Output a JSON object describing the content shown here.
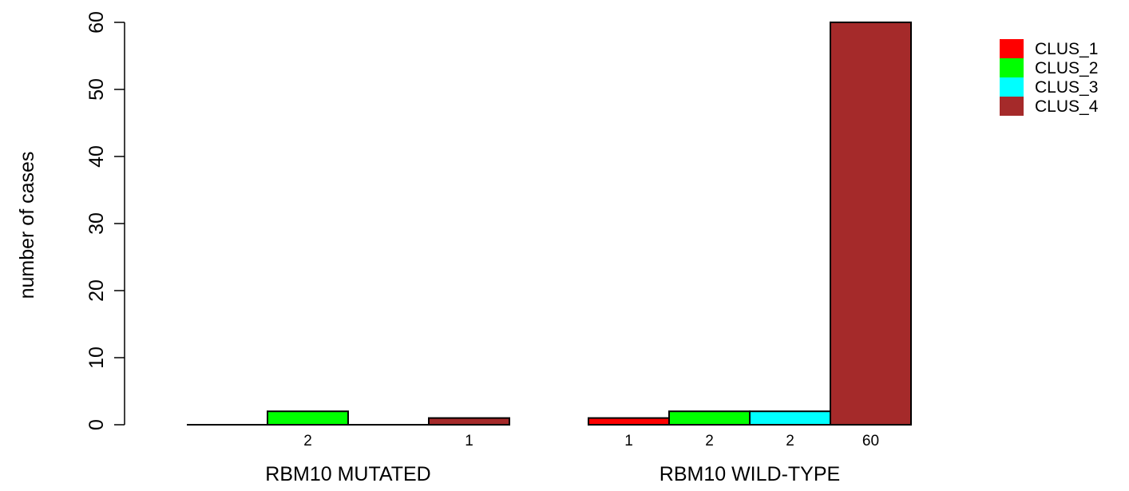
{
  "chart_data": {
    "type": "bar",
    "title": "",
    "xlabel": "",
    "ylabel": "number of cases",
    "ylim": [
      0,
      60
    ],
    "yticks": [
      0,
      10,
      20,
      30,
      40,
      50,
      60
    ],
    "grid": false,
    "legend_position": "top-right",
    "categories": [
      "RBM10 MUTATED",
      "RBM10 WILD-TYPE"
    ],
    "series": [
      {
        "name": "CLUS_1",
        "color": "#ff0000",
        "values": [
          0,
          1
        ],
        "labels": [
          "",
          "1"
        ]
      },
      {
        "name": "CLUS_2",
        "color": "#00ff00",
        "values": [
          2,
          2
        ],
        "labels": [
          "2",
          "2"
        ]
      },
      {
        "name": "CLUS_3",
        "color": "#00ffff",
        "values": [
          0,
          2
        ],
        "labels": [
          "",
          "2"
        ]
      },
      {
        "name": "CLUS_4",
        "color": "#a52a2a",
        "values": [
          1,
          60
        ],
        "labels": [
          "1",
          "60"
        ]
      }
    ]
  }
}
